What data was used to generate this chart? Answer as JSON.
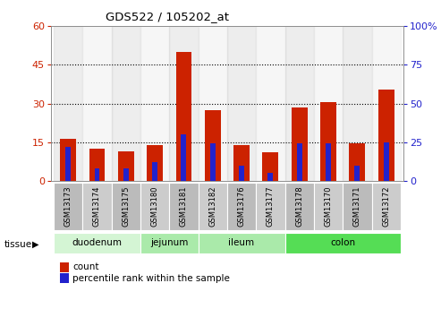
{
  "title": "GDS522 / 105202_at",
  "samples": [
    "GSM13173",
    "GSM13174",
    "GSM13175",
    "GSM13180",
    "GSM13181",
    "GSM13182",
    "GSM13176",
    "GSM13177",
    "GSM13178",
    "GSM13170",
    "GSM13171",
    "GSM13172"
  ],
  "count_values": [
    16.2,
    12.5,
    11.5,
    14.0,
    50.0,
    27.5,
    14.0,
    11.0,
    28.5,
    30.5,
    14.5,
    35.5
  ],
  "percentile_values": [
    22.0,
    8.0,
    8.0,
    12.0,
    30.0,
    24.0,
    10.0,
    5.0,
    24.0,
    24.0,
    10.0,
    25.0
  ],
  "tissue_info": [
    {
      "label": "duodenum",
      "start": 0,
      "end": 3,
      "color": "#d4f5d4"
    },
    {
      "label": "jejunum",
      "start": 3,
      "end": 5,
      "color": "#aaeaaa"
    },
    {
      "label": "ileum",
      "start": 5,
      "end": 8,
      "color": "#aaeaaa"
    },
    {
      "label": "colon",
      "start": 8,
      "end": 12,
      "color": "#55dd55"
    }
  ],
  "bar_color_count": "#cc2200",
  "bar_color_percentile": "#2222cc",
  "bar_width": 0.55,
  "blue_bar_width": 0.18,
  "ylim_left": [
    0,
    60
  ],
  "ylim_right": [
    0,
    100
  ],
  "yticks_left": [
    0,
    15,
    30,
    45,
    60
  ],
  "yticks_right": [
    0,
    25,
    50,
    75,
    100
  ],
  "background_color": "#ffffff",
  "legend_count": "count",
  "legend_percentile": "percentile rank within the sample"
}
